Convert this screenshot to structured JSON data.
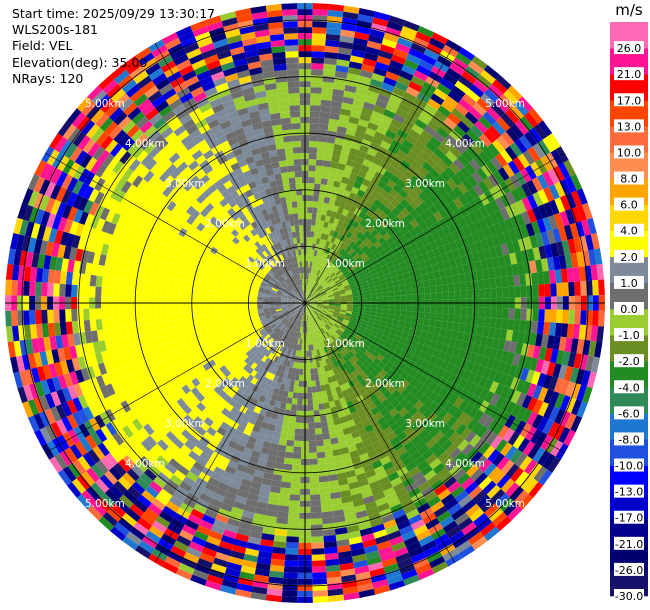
{
  "header": {
    "start_time": "Start time: 2025/09/29 13:30:17",
    "instrument": "WLS200s-181",
    "field": "Field: VEL",
    "elevation": "Elevation(deg): 35.00",
    "nrays": "NRays: 120"
  },
  "chart_data": {
    "type": "heatmap",
    "projection": "polar PPI scan",
    "field": "VEL",
    "unit": "m/s",
    "elevation_deg": 35.0,
    "n_rays": 120,
    "range_max_km": 5.3,
    "range_ring_labels": [
      "1.00km",
      "2.00km",
      "3.00km",
      "4.00km",
      "5.00km"
    ],
    "range_ring_values_km": [
      1,
      2,
      3,
      4,
      5
    ],
    "colorbar": {
      "unit": "m/s",
      "boundaries": [
        -30.0,
        -26.0,
        -21.0,
        -17.0,
        -13.0,
        -10.0,
        -8.0,
        -6.0,
        -4.0,
        -2.0,
        -1.0,
        0.0,
        1.0,
        2.0,
        4.0,
        6.0,
        8.0,
        10.0,
        13.0,
        17.0,
        21.0,
        26.0,
        30.0
      ],
      "tick_labels": [
        "-30.0",
        "-26.0",
        "-21.0",
        "-17.0",
        "-13.0",
        "-10.0",
        "-8.0",
        "-6.0",
        "-4.0",
        "-2.0",
        "-1.0",
        "0.0",
        "1.0",
        "2.0",
        "4.0",
        "6.0",
        "8.0",
        "10.0",
        "13.0",
        "17.0",
        "21.0",
        "26.0"
      ],
      "colors": [
        "#15106a",
        "#000070",
        "#00008b",
        "#0000cd",
        "#0000ff",
        "#1f50e0",
        "#1e78d2",
        "#2e8b57",
        "#228b22",
        "#6b8e23",
        "#9acd32",
        "#6e6e6e",
        "#7c8a99",
        "#ffff00",
        "#ffd700",
        "#ffa500",
        "#ff8c50",
        "#ff6a3c",
        "#ff4500",
        "#ff0000",
        "#ff1493",
        "#ff69b4"
      ]
    },
    "pattern_summary": {
      "approaching_sector": "west (yellow, +1 to +4 m/s)",
      "receding_sector": "east (green, -1 to -4 m/s)",
      "outer_ring_km": 4.2,
      "noise_beyond_outer_ring": true
    },
    "grid": true
  }
}
